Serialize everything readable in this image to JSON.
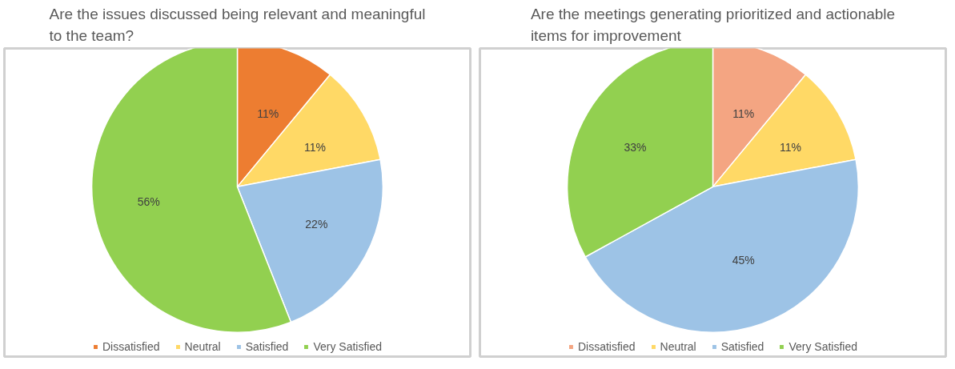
{
  "chart_data": [
    {
      "type": "pie",
      "title": "Are the issues discussed being relevant and meaningful to the team?",
      "categories": [
        "Dissatisfied",
        "Neutral",
        "Satisfied",
        "Very Satisfied"
      ],
      "values": [
        11,
        11,
        22,
        56
      ],
      "value_labels": [
        "11%",
        "11%",
        "22%",
        "56%"
      ],
      "colors": [
        "#ed7d31",
        "#ffd966",
        "#9dc3e6",
        "#92d050"
      ],
      "data_labels": true,
      "legend": "bottom"
    },
    {
      "type": "pie",
      "title": "Are the meetings generating prioritized and actionable items for improvement",
      "categories": [
        "Dissatisfied",
        "Neutral",
        "Satisfied",
        "Very Satisfied"
      ],
      "values": [
        11,
        11,
        45,
        33
      ],
      "value_labels": [
        "11%",
        "11%",
        "45%",
        "33%"
      ],
      "colors": [
        "#f4a582",
        "#ffd966",
        "#9dc3e6",
        "#92d050"
      ],
      "data_labels": true,
      "legend": "bottom"
    }
  ]
}
